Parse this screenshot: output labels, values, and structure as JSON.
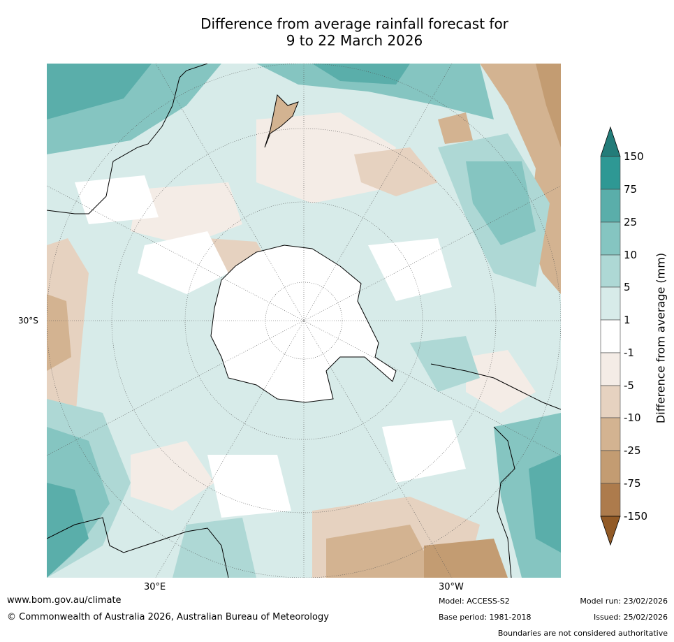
{
  "title": {
    "line1": "Difference from average rainfall forecast for",
    "line2": "9 to 22 March 2026"
  },
  "map": {
    "lat_label": "30°S",
    "lon_label_left": "30°E",
    "lon_label_right": "30°W"
  },
  "colorbar": {
    "label": "Difference from average (mm)",
    "ticks": [
      "150",
      "75",
      "25",
      "10",
      "5",
      "1",
      "-1",
      "-5",
      "-10",
      "-25",
      "-75",
      "-150"
    ],
    "colors": {
      "gt150": "#237c79",
      "b75_150": "#2e9894",
      "b25_75": "#5aaeaa",
      "b10_25": "#85c5c1",
      "b5_10": "#aed8d5",
      "b1_5": "#d7ebe9",
      "neutral": "#ffffff",
      "m1_5": "#f4ece6",
      "m5_10": "#e6d2c0",
      "m10_25": "#d3b391",
      "m25_75": "#c39c72",
      "m75_150": "#ad7b4c",
      "lt150": "#925a26"
    }
  },
  "footer": {
    "url": "www.bom.gov.au/climate",
    "copyright": "© Commonwealth of Australia 2026, Australian Bureau of Meteorology",
    "model": "Model: ACCESS-S2",
    "base_period": "Base period: 1981-2018",
    "model_run": "Model run: 23/02/2026",
    "issued": "Issued: 25/02/2026",
    "disclaimer": "Boundaries are not considered authoritative"
  }
}
